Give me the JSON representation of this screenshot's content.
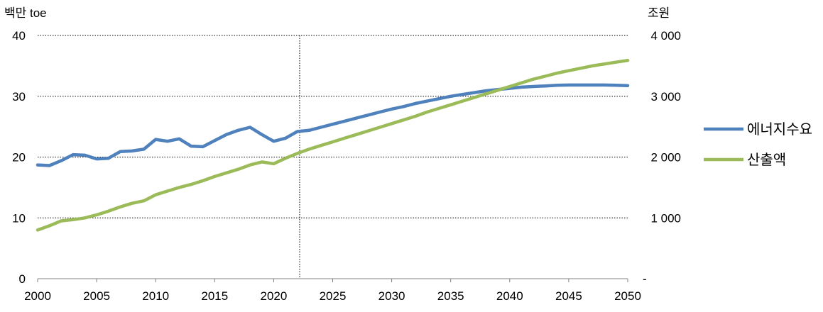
{
  "chart_data": {
    "type": "line",
    "left_axis_unit": "백만 toe",
    "right_axis_unit": "조원",
    "left_ylim": [
      0,
      40
    ],
    "left_ticks": [
      0,
      10,
      20,
      30,
      40
    ],
    "left_tick_labels": [
      "0",
      "10",
      "20",
      "30",
      "40"
    ],
    "right_ylim": [
      0,
      4000
    ],
    "right_ticks": [
      0,
      1000,
      2000,
      3000,
      4000
    ],
    "right_tick_labels": [
      "-",
      "1 000",
      "2 000",
      "3 000",
      "4 000"
    ],
    "xlim": [
      2000,
      2050
    ],
    "x_ticks": [
      2000,
      2005,
      2010,
      2015,
      2020,
      2025,
      2030,
      2035,
      2040,
      2045,
      2050
    ],
    "x_tick_labels": [
      "2000",
      "2005",
      "2010",
      "2015",
      "2020",
      "2025",
      "2030",
      "2035",
      "2040",
      "2045",
      "2050"
    ],
    "grid": "horizontal dotted",
    "reference_line_x": 2022.2,
    "legend_placement": "right",
    "x": [
      2000,
      2001,
      2002,
      2003,
      2004,
      2005,
      2006,
      2007,
      2008,
      2009,
      2010,
      2011,
      2012,
      2013,
      2014,
      2015,
      2016,
      2017,
      2018,
      2019,
      2020,
      2021,
      2022,
      2023,
      2024,
      2025,
      2026,
      2027,
      2028,
      2029,
      2030,
      2031,
      2032,
      2033,
      2034,
      2035,
      2036,
      2037,
      2038,
      2039,
      2040,
      2041,
      2042,
      2043,
      2044,
      2045,
      2046,
      2047,
      2048,
      2049,
      2050
    ],
    "series": [
      {
        "name": "에너지수요",
        "axis": "left",
        "color": "#4f81bd",
        "values": [
          18.7,
          18.6,
          19.4,
          20.4,
          20.3,
          19.7,
          19.8,
          20.9,
          21.0,
          21.3,
          22.9,
          22.6,
          23.0,
          21.8,
          21.7,
          22.7,
          23.7,
          24.4,
          24.9,
          23.7,
          22.6,
          23.1,
          24.2,
          24.4,
          24.9,
          25.4,
          25.9,
          26.4,
          26.9,
          27.4,
          27.9,
          28.3,
          28.8,
          29.2,
          29.6,
          30.0,
          30.3,
          30.6,
          30.9,
          31.1,
          31.3,
          31.5,
          31.6,
          31.7,
          31.8,
          31.85,
          31.85,
          31.85,
          31.85,
          31.8,
          31.75
        ]
      },
      {
        "name": "산출액",
        "axis": "right",
        "color": "#9bbb59",
        "values": [
          800,
          870,
          950,
          970,
          1000,
          1050,
          1110,
          1180,
          1240,
          1280,
          1380,
          1440,
          1500,
          1550,
          1610,
          1680,
          1740,
          1800,
          1870,
          1920,
          1890,
          1980,
          2060,
          2130,
          2190,
          2250,
          2310,
          2370,
          2430,
          2490,
          2550,
          2610,
          2670,
          2740,
          2800,
          2860,
          2920,
          2980,
          3040,
          3100,
          3160,
          3220,
          3280,
          3330,
          3380,
          3420,
          3460,
          3500,
          3530,
          3560,
          3590
        ]
      }
    ]
  }
}
